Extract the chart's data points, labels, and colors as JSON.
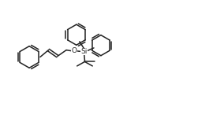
{
  "bg_color": "#ffffff",
  "line_color": "#222222",
  "line_width": 1.1,
  "font_size_si": 6.5,
  "font_size_o": 6.5,
  "si_label": "Si",
  "o_label": "O",
  "figure_width": 2.65,
  "figure_height": 1.5,
  "dpi": 100,
  "xlim": [
    0,
    10.5
  ],
  "ylim": [
    0,
    5.5
  ]
}
